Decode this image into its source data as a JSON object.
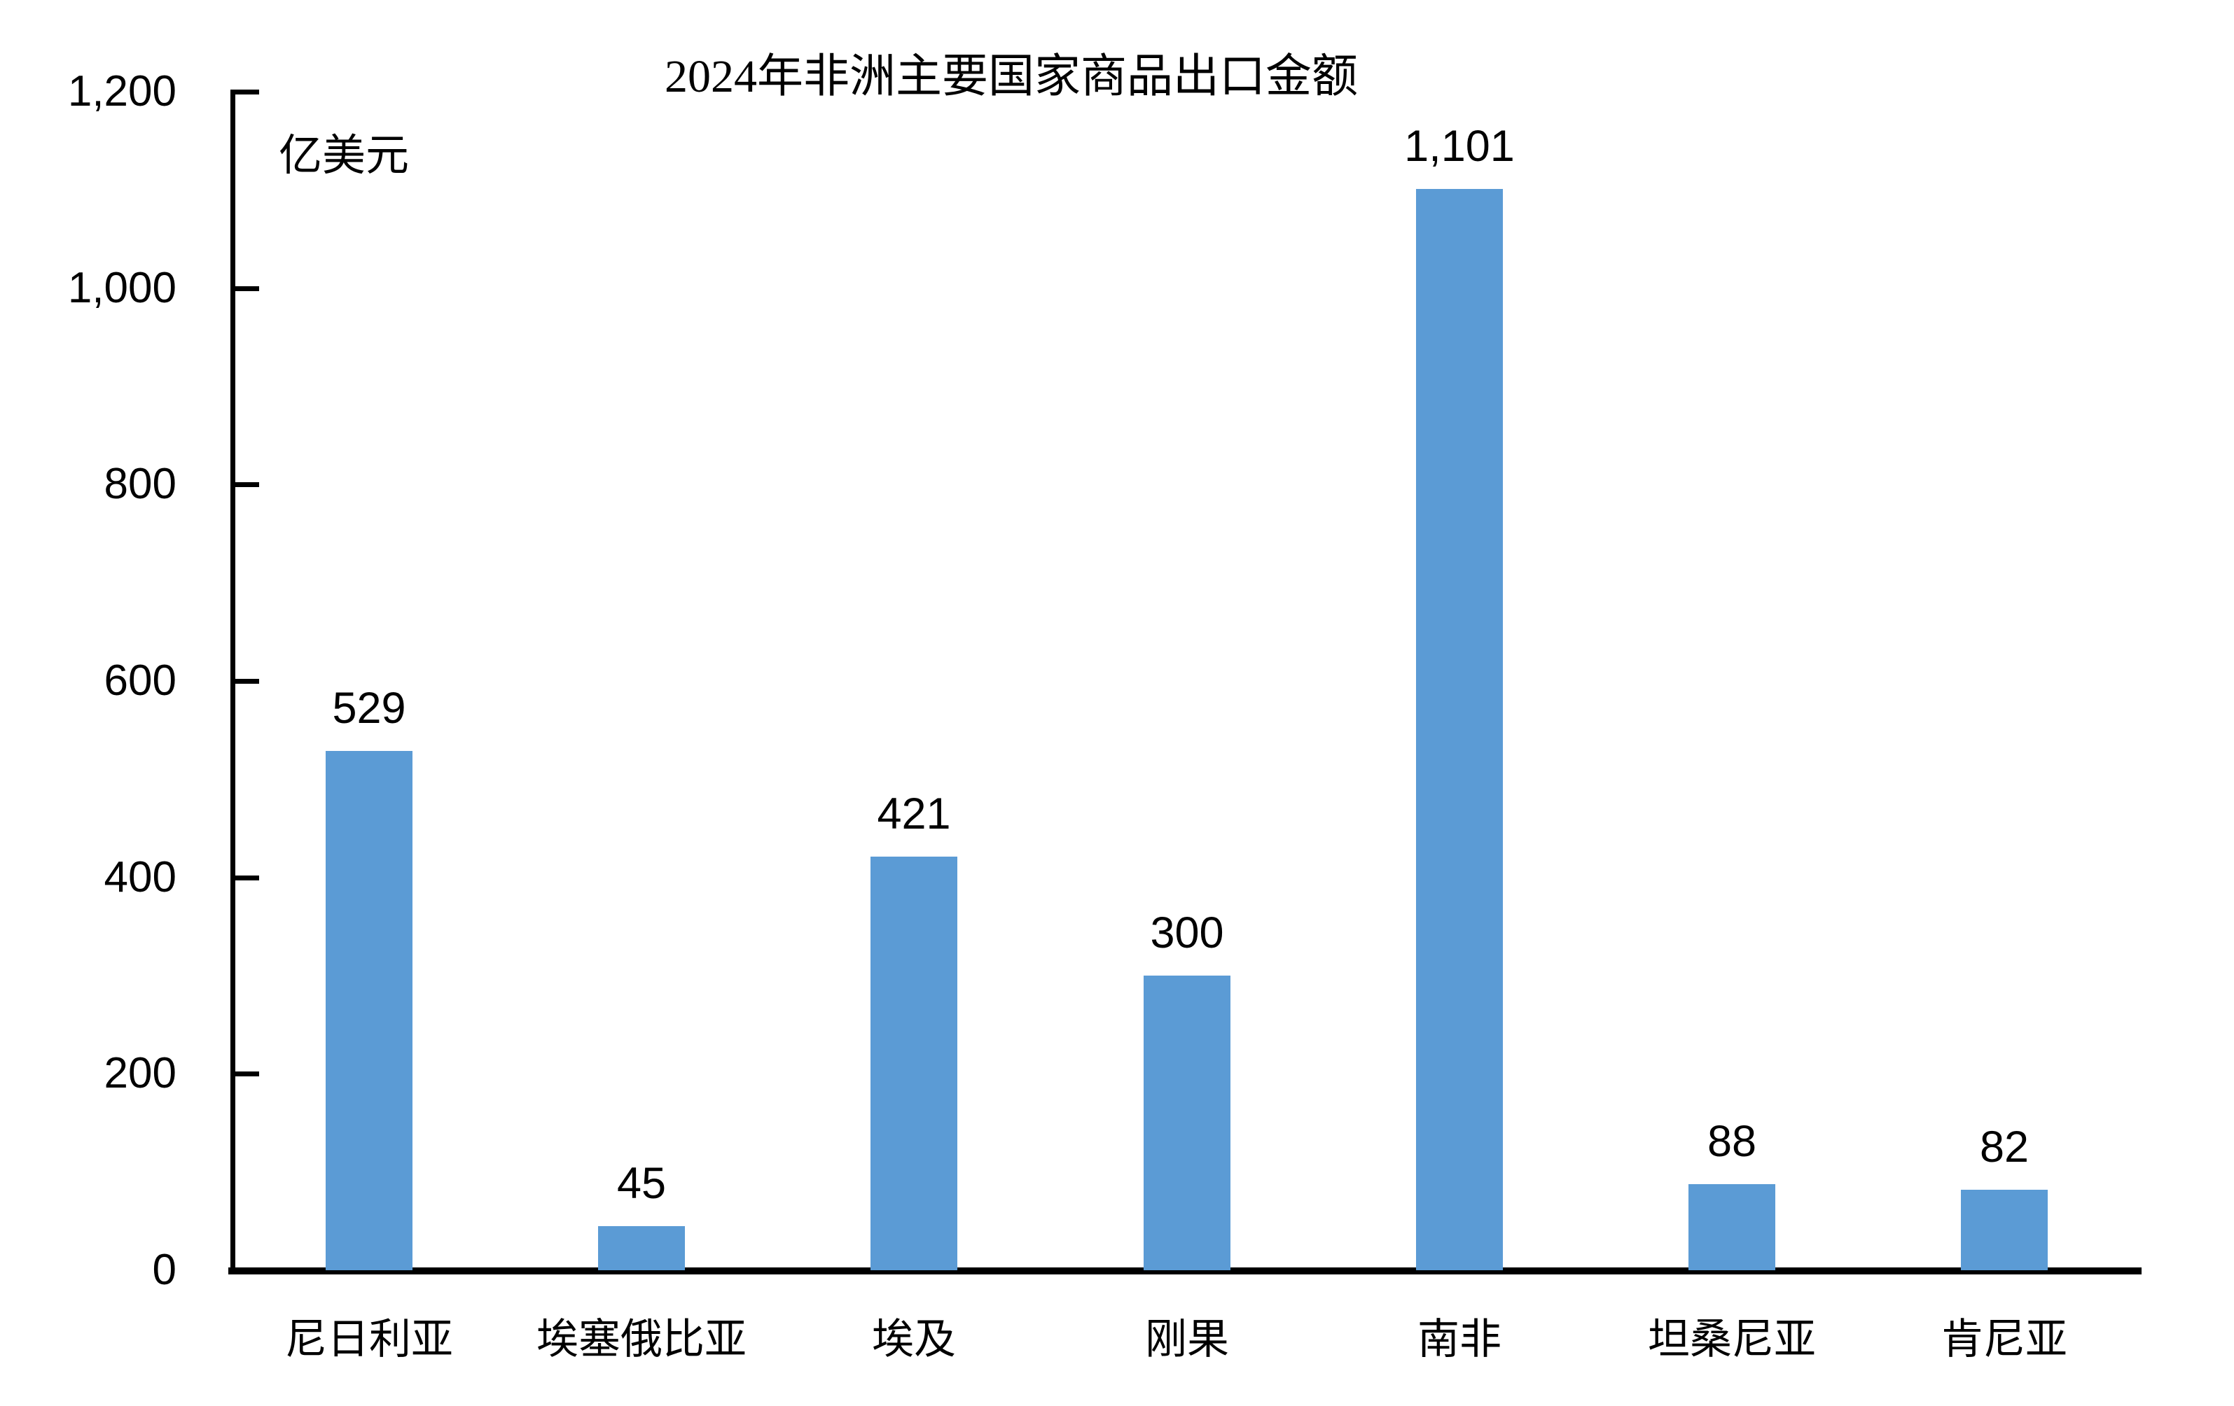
{
  "chart_data": {
    "type": "bar",
    "title": "2024年非洲主要国家商品出口金额",
    "unit_label": "亿美元",
    "categories": [
      "尼日利亚",
      "埃塞俄比亚",
      "埃及",
      "刚果",
      "南非",
      "坦桑尼亚",
      "肯尼亚"
    ],
    "values": [
      529,
      45,
      421,
      300,
      1101,
      88,
      82
    ],
    "value_labels": [
      "529",
      "45",
      "421",
      "300",
      "1,101",
      "88",
      "82"
    ],
    "xlabel": "",
    "ylabel": "亿美元",
    "ylim": [
      0,
      1200
    ],
    "y_ticks": [
      {
        "value": 0,
        "label": "0"
      },
      {
        "value": 200,
        "label": "200"
      },
      {
        "value": 400,
        "label": "400"
      },
      {
        "value": 600,
        "label": "600"
      },
      {
        "value": 800,
        "label": "800"
      },
      {
        "value": 1000,
        "label": "1,000"
      },
      {
        "value": 1200,
        "label": "1,200"
      }
    ],
    "grid": "off",
    "legend": "none",
    "bar_color": "#5B9BD5",
    "axis_color": "#000000",
    "background_color": "#FFFFFF"
  }
}
